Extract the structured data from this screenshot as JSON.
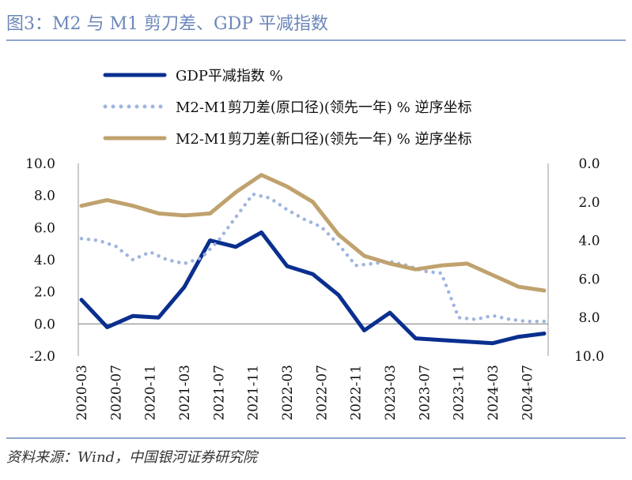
{
  "title": "图3：M2 与 M1 剪刀差、GDP 平减指数",
  "source": "资料来源：Wind，中国银河证券研究院",
  "chart_data": {
    "type": "line",
    "x_tick_labels": [
      "2020-03",
      "2020-07",
      "2020-11",
      "2021-03",
      "2021-07",
      "2021-11",
      "2022-03",
      "2022-07",
      "2022-11",
      "2023-03",
      "2023-07",
      "2023-11",
      "2024-03",
      "2024-07"
    ],
    "x_months": [
      "2020-03",
      "2020-05",
      "2020-07",
      "2020-09",
      "2020-11",
      "2021-01",
      "2021-03",
      "2021-05",
      "2021-07",
      "2021-09",
      "2021-11",
      "2022-01",
      "2022-03",
      "2022-05",
      "2022-07",
      "2022-09",
      "2022-11",
      "2023-01",
      "2023-03",
      "2023-05",
      "2023-07",
      "2023-09",
      "2023-11",
      "2024-01",
      "2024-03",
      "2024-05",
      "2024-07",
      "2024-09"
    ],
    "left_axis": {
      "ylim": [
        -2.0,
        10.0
      ],
      "ticks": [
        "10.0",
        "8.0",
        "6.0",
        "4.0",
        "2.0",
        "0.0",
        "-2.0"
      ]
    },
    "right_axis": {
      "ylim": [
        0.0,
        10.0
      ],
      "reversed": true,
      "ticks": [
        "0.0",
        "2.0",
        "4.0",
        "6.0",
        "8.0",
        "10.0"
      ]
    },
    "series": [
      {
        "name": "GDP平减指数 %",
        "axis": "left",
        "style": "solid",
        "color": "#0a2f8f",
        "x": [
          "2020-03",
          "2020-06",
          "2020-09",
          "2020-12",
          "2021-03",
          "2021-06",
          "2021-09",
          "2021-12",
          "2022-03",
          "2022-06",
          "2022-09",
          "2022-12",
          "2023-03",
          "2023-06",
          "2023-09",
          "2023-12",
          "2024-03",
          "2024-06",
          "2024-09"
        ],
        "values": [
          1.5,
          -0.2,
          0.5,
          0.4,
          2.3,
          5.2,
          4.8,
          5.7,
          3.6,
          3.1,
          1.8,
          -0.4,
          0.7,
          -0.9,
          -1.0,
          -1.1,
          -1.2,
          -0.8,
          -0.6
        ]
      },
      {
        "name": "M2-M1剪刀差(原口径)(领先一年) % 逆序坐标",
        "axis": "right",
        "style": "dotted",
        "color": "#9fb5e0",
        "x": [
          "2020-03",
          "2020-05",
          "2020-07",
          "2020-09",
          "2020-11",
          "2021-01",
          "2021-03",
          "2021-05",
          "2021-07",
          "2021-09",
          "2021-11",
          "2022-01",
          "2022-03",
          "2022-05",
          "2022-07",
          "2022-09",
          "2022-11",
          "2023-01",
          "2023-03",
          "2023-05",
          "2023-07",
          "2023-09",
          "2023-11",
          "2024-01",
          "2024-03",
          "2024-05",
          "2024-07",
          "2024-09"
        ],
        "values": [
          3.9,
          4.0,
          4.3,
          5.0,
          4.6,
          5.0,
          5.2,
          4.9,
          4.0,
          2.8,
          1.6,
          1.8,
          2.4,
          2.9,
          3.3,
          4.2,
          5.3,
          5.2,
          5.1,
          5.3,
          5.6,
          5.7,
          8.0,
          8.1,
          7.9,
          8.1,
          8.2,
          8.2
        ]
      },
      {
        "name": "M2-M1剪刀差(新口径)(领先一年) % 逆序坐标",
        "axis": "right",
        "style": "solid",
        "color": "#c0a26e",
        "x": [
          "2020-03",
          "2020-06",
          "2020-09",
          "2020-12",
          "2021-03",
          "2021-06",
          "2021-09",
          "2021-12",
          "2022-03",
          "2022-06",
          "2022-09",
          "2022-12",
          "2023-03",
          "2023-06",
          "2023-09",
          "2023-12",
          "2024-03",
          "2024-06",
          "2024-09"
        ],
        "values": [
          2.2,
          1.9,
          2.2,
          2.6,
          2.7,
          2.6,
          1.5,
          0.6,
          1.2,
          2.0,
          3.7,
          4.8,
          5.2,
          5.5,
          5.3,
          5.2,
          5.8,
          6.4,
          6.6
        ]
      }
    ],
    "legend_position": "top-center"
  }
}
